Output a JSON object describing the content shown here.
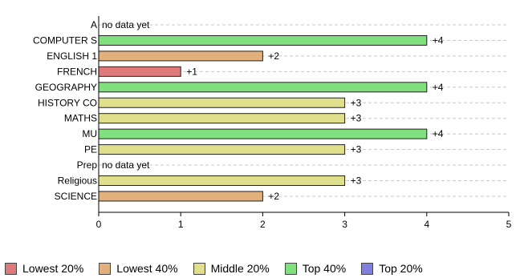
{
  "chart_data": {
    "type": "bar",
    "orientation": "horizontal",
    "categories": [
      "A",
      "COMPUTER S",
      "ENGLISH 1",
      "FRENCH",
      "GEOGRAPHY",
      "HISTORY CO",
      "MATHS",
      "MU",
      "PE",
      "Prep",
      "Religious",
      "SCIENCE"
    ],
    "values": [
      null,
      4,
      2,
      1,
      4,
      3,
      3,
      4,
      3,
      null,
      3,
      2
    ],
    "data_labels": [
      "no data yet",
      "+4",
      "+2",
      "+1",
      "+4",
      "+3",
      "+3",
      "+4",
      "+3",
      "no data yet",
      "+3",
      "+2"
    ],
    "bar_bands": [
      "none",
      "Top 40%",
      "Lowest 40%",
      "Lowest 20%",
      "Top 40%",
      "Middle 20%",
      "Middle 20%",
      "Top 40%",
      "Middle 20%",
      "none",
      "Middle 20%",
      "Lowest 40%"
    ],
    "xlim": [
      0,
      5
    ],
    "x_ticks": [
      "0",
      "1",
      "2",
      "3",
      "4",
      "5"
    ],
    "grid": "horizontal dashed",
    "legend_position": "bottom"
  },
  "legend": [
    {
      "label": "Lowest 20%",
      "color": "#e07a7a"
    },
    {
      "label": "Lowest 40%",
      "color": "#e1b07c"
    },
    {
      "label": "Middle 20%",
      "color": "#e0e08c"
    },
    {
      "label": "Top 40%",
      "color": "#80e080"
    },
    {
      "label": "Top 20%",
      "color": "#8080e0"
    }
  ]
}
